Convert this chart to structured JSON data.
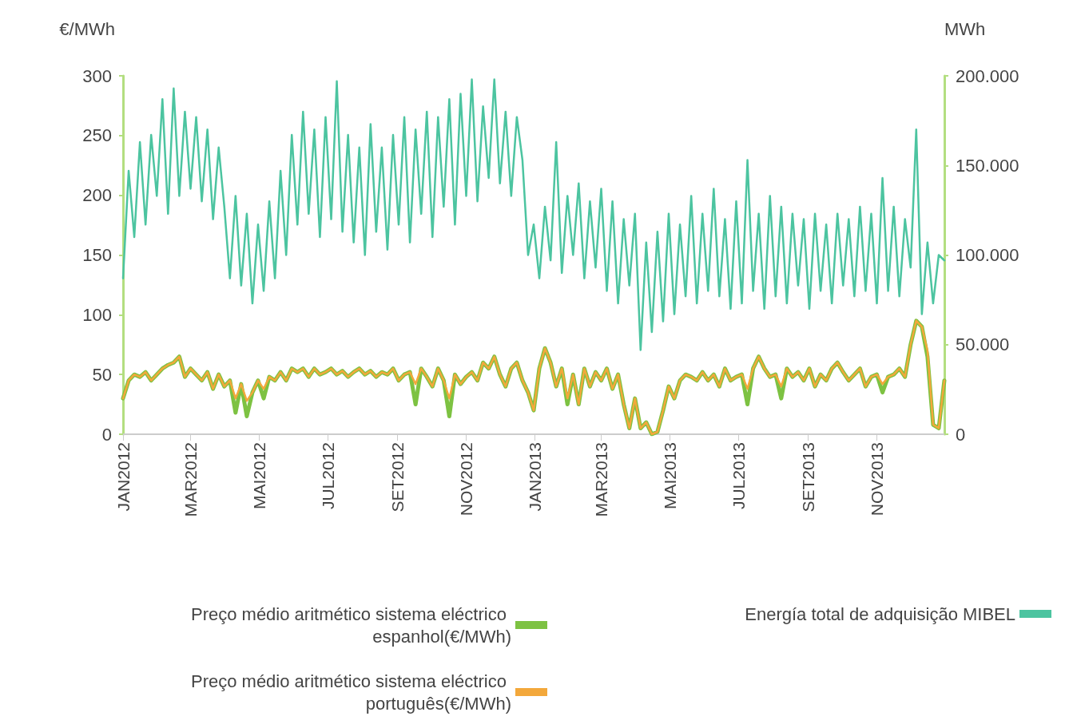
{
  "chart_data": {
    "type": "line",
    "ylabel": "€/MWh",
    "y2label": "MWh",
    "legend": "bottom",
    "marker": "none",
    "line_style": "solid",
    "xlim": [
      "2012-01-01",
      "2013-12-31"
    ],
    "xticks": [
      {
        "value": "2012-01-01",
        "label": "JAN2012"
      },
      {
        "value": "2012-03-01",
        "label": "MAR2012"
      },
      {
        "value": "2012-05-01",
        "label": "MAI2012"
      },
      {
        "value": "2012-07-01",
        "label": "JUL2012"
      },
      {
        "value": "2012-09-01",
        "label": "SET2012"
      },
      {
        "value": "2012-11-01",
        "label": "NOV2012"
      },
      {
        "value": "2013-01-01",
        "label": "JAN2013"
      },
      {
        "value": "2013-03-01",
        "label": "MAR2013"
      },
      {
        "value": "2013-05-01",
        "label": "MAI2013"
      },
      {
        "value": "2013-07-01",
        "label": "JUL2013"
      },
      {
        "value": "2013-09-01",
        "label": "SET2013"
      },
      {
        "value": "2013-11-01",
        "label": "NOV2013"
      }
    ],
    "ylim": [
      0,
      300
    ],
    "yticks": [
      0,
      50,
      100,
      150,
      200,
      250,
      300
    ],
    "y2lim": [
      0,
      200000
    ],
    "y2ticks": [
      {
        "value": 0,
        "label": "0"
      },
      {
        "value": 50000,
        "label": "50.000"
      },
      {
        "value": 100000,
        "label": "100.000"
      },
      {
        "value": 150000,
        "label": "150.000"
      },
      {
        "value": 200000,
        "label": "200.000"
      }
    ],
    "x": [
      "2012-01-01",
      "2012-01-06",
      "2012-01-11",
      "2012-01-16",
      "2012-01-21",
      "2012-01-26",
      "2012-01-31",
      "2012-02-05",
      "2012-02-10",
      "2012-02-15",
      "2012-02-20",
      "2012-02-25",
      "2012-03-01",
      "2012-03-06",
      "2012-03-11",
      "2012-03-16",
      "2012-03-21",
      "2012-03-26",
      "2012-03-31",
      "2012-04-05",
      "2012-04-10",
      "2012-04-15",
      "2012-04-20",
      "2012-04-25",
      "2012-04-30",
      "2012-05-05",
      "2012-05-10",
      "2012-05-15",
      "2012-05-20",
      "2012-05-25",
      "2012-05-30",
      "2012-06-04",
      "2012-06-09",
      "2012-06-14",
      "2012-06-19",
      "2012-06-24",
      "2012-06-29",
      "2012-07-04",
      "2012-07-09",
      "2012-07-14",
      "2012-07-19",
      "2012-07-24",
      "2012-07-29",
      "2012-08-03",
      "2012-08-08",
      "2012-08-13",
      "2012-08-18",
      "2012-08-23",
      "2012-08-28",
      "2012-09-02",
      "2012-09-07",
      "2012-09-12",
      "2012-09-17",
      "2012-09-22",
      "2012-09-27",
      "2012-10-02",
      "2012-10-07",
      "2012-10-12",
      "2012-10-17",
      "2012-10-22",
      "2012-10-27",
      "2012-11-01",
      "2012-11-06",
      "2012-11-11",
      "2012-11-16",
      "2012-11-21",
      "2012-11-26",
      "2012-12-01",
      "2012-12-06",
      "2012-12-11",
      "2012-12-16",
      "2012-12-21",
      "2012-12-26",
      "2012-12-31",
      "2013-01-05",
      "2013-01-10",
      "2013-01-15",
      "2013-01-20",
      "2013-01-25",
      "2013-01-30",
      "2013-02-04",
      "2013-02-09",
      "2013-02-14",
      "2013-02-19",
      "2013-02-24",
      "2013-03-01",
      "2013-03-06",
      "2013-03-11",
      "2013-03-16",
      "2013-03-21",
      "2013-03-26",
      "2013-03-31",
      "2013-04-05",
      "2013-04-10",
      "2013-04-15",
      "2013-04-20",
      "2013-04-25",
      "2013-04-30",
      "2013-05-05",
      "2013-05-10",
      "2013-05-15",
      "2013-05-20",
      "2013-05-25",
      "2013-05-30",
      "2013-06-04",
      "2013-06-09",
      "2013-06-14",
      "2013-06-19",
      "2013-06-24",
      "2013-06-29",
      "2013-07-04",
      "2013-07-09",
      "2013-07-14",
      "2013-07-19",
      "2013-07-24",
      "2013-07-29",
      "2013-08-03",
      "2013-08-08",
      "2013-08-13",
      "2013-08-18",
      "2013-08-23",
      "2013-08-28",
      "2013-09-02",
      "2013-09-07",
      "2013-09-12",
      "2013-09-17",
      "2013-09-22",
      "2013-09-27",
      "2013-10-02",
      "2013-10-07",
      "2013-10-12",
      "2013-10-17",
      "2013-10-22",
      "2013-10-27",
      "2013-11-01",
      "2013-11-06",
      "2013-11-11",
      "2013-11-16",
      "2013-11-21",
      "2013-11-26",
      "2013-12-01",
      "2013-12-06",
      "2013-12-11",
      "2013-12-16",
      "2013-12-21",
      "2013-12-26",
      "2013-12-31"
    ],
    "series": [
      {
        "name": "Preço médio aritmético sistema eléctrico espanhol(€/MWh)",
        "color": "#7dc242",
        "values": [
          30,
          45,
          50,
          48,
          52,
          45,
          50,
          55,
          58,
          60,
          65,
          48,
          55,
          50,
          45,
          52,
          38,
          50,
          40,
          45,
          18,
          42,
          15,
          35,
          45,
          30,
          48,
          45,
          52,
          45,
          55,
          52,
          55,
          48,
          55,
          50,
          52,
          55,
          50,
          53,
          48,
          52,
          55,
          50,
          53,
          48,
          52,
          50,
          55,
          45,
          50,
          52,
          25,
          55,
          48,
          40,
          55,
          45,
          15,
          50,
          42,
          48,
          52,
          45,
          60,
          55,
          65,
          50,
          40,
          55,
          60,
          45,
          35,
          20,
          55,
          72,
          60,
          40,
          55,
          25,
          50,
          25,
          55,
          40,
          52,
          45,
          55,
          38,
          50,
          25,
          5,
          30,
          5,
          10,
          0,
          2,
          20,
          40,
          30,
          45,
          50,
          48,
          45,
          52,
          45,
          50,
          40,
          55,
          45,
          48,
          50,
          25,
          55,
          65,
          55,
          48,
          50,
          30,
          55,
          48,
          52,
          45,
          55,
          40,
          50,
          45,
          55,
          60,
          52,
          45,
          50,
          55,
          40,
          48,
          50,
          35,
          48,
          50,
          55,
          48,
          75,
          95,
          90,
          65,
          8,
          5,
          45
        ]
      },
      {
        "name": "Preço médio aritmético sistema eléctrico português(€/MWh)",
        "color": "#f3a83b",
        "values": [
          30,
          45,
          50,
          48,
          52,
          45,
          50,
          55,
          58,
          60,
          65,
          48,
          55,
          50,
          45,
          52,
          38,
          50,
          40,
          45,
          30,
          42,
          28,
          35,
          45,
          38,
          48,
          45,
          52,
          45,
          55,
          52,
          55,
          48,
          55,
          50,
          52,
          55,
          50,
          53,
          48,
          52,
          55,
          50,
          53,
          48,
          52,
          50,
          55,
          45,
          50,
          52,
          42,
          55,
          48,
          40,
          55,
          45,
          30,
          50,
          42,
          48,
          52,
          45,
          60,
          55,
          65,
          50,
          40,
          55,
          60,
          45,
          35,
          20,
          55,
          72,
          60,
          40,
          55,
          30,
          50,
          25,
          55,
          40,
          52,
          45,
          55,
          38,
          50,
          25,
          5,
          30,
          5,
          10,
          0,
          2,
          20,
          40,
          30,
          45,
          50,
          48,
          45,
          52,
          45,
          50,
          40,
          55,
          45,
          48,
          50,
          38,
          55,
          65,
          55,
          48,
          50,
          40,
          55,
          48,
          52,
          45,
          55,
          40,
          50,
          45,
          55,
          60,
          52,
          45,
          50,
          55,
          40,
          48,
          50,
          42,
          48,
          50,
          55,
          48,
          75,
          95,
          90,
          70,
          8,
          5,
          45
        ]
      },
      {
        "name": "Energía total de adquisição MIBEL",
        "color": "#4cc4a0",
        "axis": "y2",
        "values": [
          87000,
          147000,
          110000,
          163000,
          117000,
          167000,
          133000,
          187000,
          123000,
          193000,
          133000,
          180000,
          137000,
          177000,
          130000,
          170000,
          120000,
          160000,
          127000,
          87000,
          133000,
          83000,
          123000,
          73000,
          117000,
          80000,
          130000,
          87000,
          147000,
          100000,
          167000,
          117000,
          180000,
          123000,
          170000,
          110000,
          177000,
          120000,
          197000,
          113000,
          167000,
          107000,
          160000,
          100000,
          173000,
          113000,
          160000,
          103000,
          167000,
          117000,
          177000,
          107000,
          170000,
          123000,
          180000,
          110000,
          177000,
          127000,
          187000,
          117000,
          190000,
          133000,
          198000,
          130000,
          183000,
          143000,
          198000,
          140000,
          180000,
          133000,
          177000,
          153000,
          100000,
          117000,
          87000,
          127000,
          97000,
          163000,
          90000,
          133000,
          100000,
          140000,
          87000,
          130000,
          93000,
          137000,
          80000,
          130000,
          73000,
          120000,
          83000,
          123000,
          47000,
          107000,
          57000,
          113000,
          63000,
          123000,
          67000,
          117000,
          77000,
          133000,
          73000,
          123000,
          80000,
          137000,
          77000,
          120000,
          70000,
          130000,
          73000,
          153000,
          80000,
          123000,
          70000,
          133000,
          77000,
          127000,
          73000,
          123000,
          83000,
          120000,
          70000,
          123000,
          80000,
          117000,
          73000,
          123000,
          83000,
          120000,
          77000,
          127000,
          80000,
          123000,
          73000,
          143000,
          80000,
          127000,
          77000,
          120000,
          93000,
          170000,
          67000,
          107000,
          73000,
          100000,
          97000
        ]
      }
    ]
  }
}
